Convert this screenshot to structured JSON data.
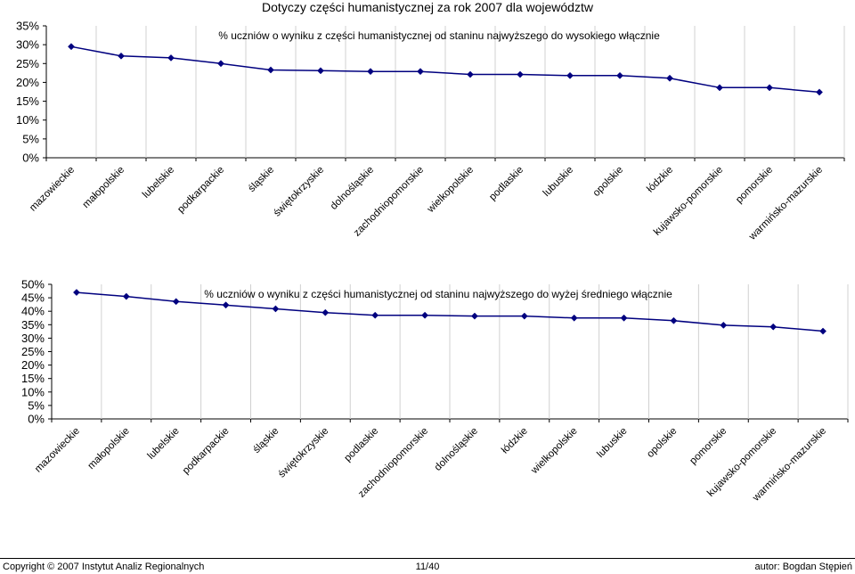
{
  "page": {
    "title": "Dotyczy części humanistycznej za rok 2007 dla województw"
  },
  "chart_data": [
    {
      "type": "line",
      "title": "% uczniów o wyniku z części humanistycznej od staninu najwyższego do wysokiego włącznie",
      "xlabel": "",
      "ylabel": "",
      "ylim": [
        0,
        35
      ],
      "yticks": [
        "0%",
        "5%",
        "10%",
        "15%",
        "20%",
        "25%",
        "30%",
        "35%"
      ],
      "grid": "vertical",
      "categories": [
        "mazowieckie",
        "małopolskie",
        "lubelskie",
        "podkarpackie",
        "śląskie",
        "świętokrzyskie",
        "dolnośląskie",
        "zachodniopomorskie",
        "wielkopolskie",
        "podlaskie",
        "lubuskie",
        "opolskie",
        "łódzkie",
        "kujawsko-pomorskie",
        "pomorskie",
        "warmińsko-mazurskie"
      ],
      "series": [
        {
          "name": "",
          "color": "#00007f",
          "values": [
            29.5,
            27.0,
            26.5,
            25.0,
            23.3,
            23.1,
            22.9,
            22.9,
            22.1,
            22.1,
            21.8,
            21.8,
            21.1,
            18.6,
            18.6,
            17.4
          ]
        }
      ]
    },
    {
      "type": "line",
      "title": "% uczniów o wyniku z części humanistycznej od staninu najwyższego do wyżej średniego włącznie",
      "xlabel": "",
      "ylabel": "",
      "ylim": [
        0,
        50
      ],
      "yticks": [
        "0%",
        "5%",
        "10%",
        "15%",
        "20%",
        "25%",
        "30%",
        "35%",
        "40%",
        "45%",
        "50%"
      ],
      "grid": "vertical",
      "categories": [
        "mazowieckie",
        "małopolskie",
        "lubelskie",
        "podkarpackie",
        "śląskie",
        "świętokrzyskie",
        "podlaskie",
        "zachodniopomorskie",
        "dolnośląskie",
        "łódzkie",
        "wielkopolskie",
        "lubuskie",
        "opolskie",
        "pomorskie",
        "kujawsko-pomorskie",
        "warmińsko-mazurskie"
      ],
      "series": [
        {
          "name": "",
          "color": "#00007f",
          "values": [
            47.0,
            45.5,
            43.6,
            42.3,
            40.9,
            39.5,
            38.5,
            38.5,
            38.2,
            38.2,
            37.5,
            37.5,
            36.5,
            34.8,
            34.2,
            32.6
          ]
        }
      ]
    }
  ],
  "footer": {
    "copyright": "Copyright © 2007 Instytut Analiz Regionalnych",
    "page_number": "11/40",
    "author": "autor: Bogdan Stępień"
  }
}
